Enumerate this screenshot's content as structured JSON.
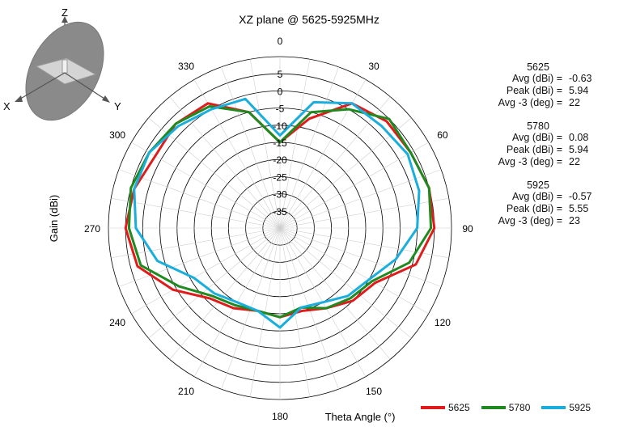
{
  "chart_data": {
    "type": "polar-line",
    "title": "XZ plane @ 5625-5925MHz",
    "ylabel": "Gain  (dBi)",
    "xlabel": "Theta  Angle (°)",
    "radial_range": [
      -40,
      10
    ],
    "radial_ticks": [
      5,
      0,
      -5,
      -10,
      -15,
      -20,
      -25,
      -30,
      -35
    ],
    "angle_ticks": [
      0,
      30,
      60,
      90,
      120,
      150,
      180,
      210,
      240,
      270,
      300,
      330
    ],
    "angles": [
      0,
      15,
      30,
      45,
      60,
      75,
      90,
      105,
      120,
      135,
      150,
      165,
      180,
      195,
      210,
      225,
      240,
      255,
      270,
      285,
      300,
      315,
      330,
      345
    ],
    "series": [
      {
        "name": "5625",
        "color": "#e01b1b",
        "values": [
          -15,
          -7,
          2,
          4,
          4,
          5,
          5,
          1,
          -8,
          -10,
          -13,
          -15,
          -14,
          -15,
          -13,
          -11,
          -4,
          3,
          5,
          4,
          2,
          3,
          2,
          -5
        ]
      },
      {
        "name": "5780",
        "color": "#1f8a1f",
        "values": [
          -15,
          -5,
          0,
          5,
          4,
          5,
          4,
          -1,
          -9,
          -11,
          -13,
          -16,
          -14,
          -15,
          -14,
          -12,
          -6,
          2,
          4,
          5,
          4,
          3,
          1,
          -5
        ]
      },
      {
        "name": "5925",
        "color": "#1aaedc",
        "values": [
          -13,
          -2,
          2,
          2,
          3,
          2,
          0,
          -5,
          -10,
          -12,
          -15,
          -16,
          -11,
          -15,
          -15,
          -13,
          -11,
          -3,
          2,
          4,
          4,
          2,
          0,
          -1
        ]
      }
    ],
    "stats": [
      {
        "freq": "5625",
        "rows": [
          {
            "label": "Avg (dBi) =",
            "value": "-0.63"
          },
          {
            "label": "Peak (dBi) =",
            "value": "5.94"
          },
          {
            "label": "Avg -3 (deg) =",
            "value": "22"
          }
        ]
      },
      {
        "freq": "5780",
        "rows": [
          {
            "label": "Avg (dBi) =",
            "value": "0.08"
          },
          {
            "label": "Peak (dBi) =",
            "value": "5.94"
          },
          {
            "label": "Avg -3 (deg) =",
            "value": "22"
          }
        ]
      },
      {
        "freq": "5925",
        "rows": [
          {
            "label": "Avg (dBi) =",
            "value": "-0.57"
          },
          {
            "label": "Peak (dBi) =",
            "value": "5.55"
          },
          {
            "label": "Avg -3 (deg) =",
            "value": "23"
          }
        ]
      }
    ]
  },
  "axes_icon": {
    "x": "X",
    "y": "Y",
    "z": "Z"
  }
}
